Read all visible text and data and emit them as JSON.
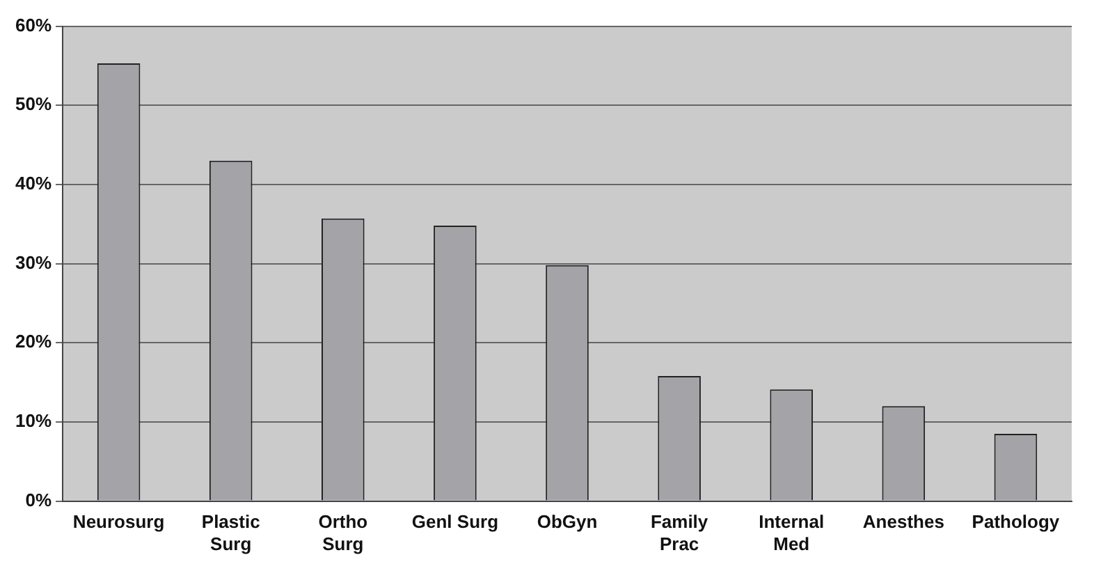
{
  "chart_data": {
    "type": "bar",
    "categories": [
      "Neurosurg",
      "Plastic\nSurg",
      "Ortho\nSurg",
      "Genl Surg",
      "ObGyn",
      "Family\nPrac",
      "Internal\nMed",
      "Anesthes",
      "Pathology"
    ],
    "values": [
      55.3,
      43,
      35.7,
      34.8,
      29.8,
      15.8,
      14.1,
      12,
      8.5
    ],
    "color": "#a3a3a8",
    "ylim": [
      0,
      60
    ],
    "yticks": [
      {
        "value": 0,
        "label": "0%"
      },
      {
        "value": 10,
        "label": "10%"
      },
      {
        "value": 20,
        "label": "20%"
      },
      {
        "value": 30,
        "label": "30%"
      },
      {
        "value": 40,
        "label": "40%"
      },
      {
        "value": 50,
        "label": "50%"
      },
      {
        "value": 60,
        "label": "60%"
      }
    ],
    "grid": "y"
  }
}
